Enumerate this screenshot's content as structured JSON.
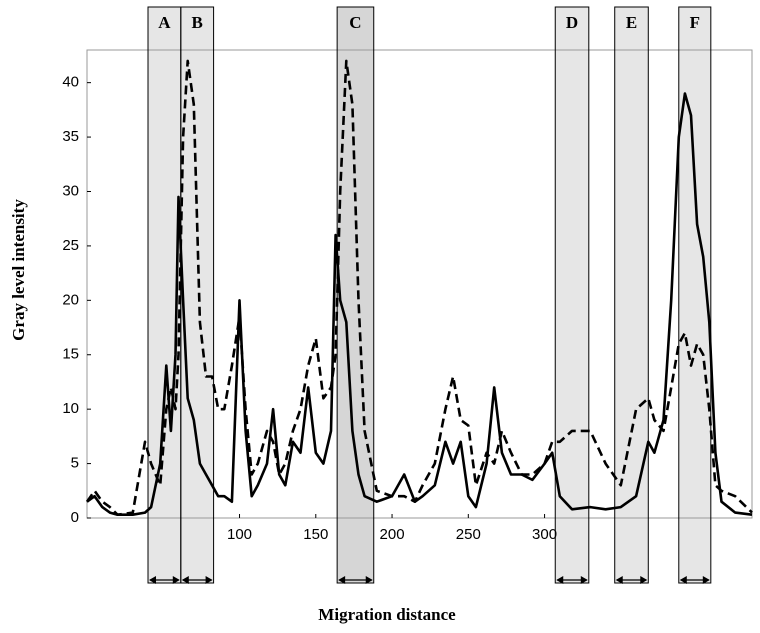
{
  "chart_data": {
    "type": "line",
    "y_label": "Gray level intensity",
    "x_label": "Migration distance",
    "xlim": [
      0,
      436
    ],
    "ylim": [
      0,
      43
    ],
    "xticks": [
      100,
      150,
      200,
      250,
      300
    ],
    "yticks": [
      0,
      5,
      10,
      15,
      20,
      25,
      30,
      35,
      40
    ],
    "x": [
      0,
      5,
      10,
      15,
      20,
      30,
      38,
      42,
      48,
      52,
      55,
      58,
      60,
      63,
      66,
      70,
      74,
      78,
      82,
      86,
      90,
      95,
      100,
      104,
      108,
      112,
      118,
      122,
      126,
      130,
      135,
      140,
      145,
      150,
      155,
      160,
      163,
      166,
      170,
      174,
      178,
      182,
      190,
      200,
      208,
      215,
      220,
      228,
      235,
      240,
      245,
      250,
      255,
      262,
      267,
      272,
      278,
      285,
      292,
      300,
      305,
      310,
      318,
      330,
      340,
      350,
      360,
      368,
      372,
      378,
      383,
      388,
      392,
      396,
      400,
      404,
      408,
      412,
      416,
      425,
      436
    ],
    "series": [
      {
        "color": "#000000",
        "dash": "solid",
        "values": [
          1.5,
          2,
          1,
          0.5,
          0.3,
          0.3,
          0.5,
          1,
          5,
          14,
          8,
          15,
          29.5,
          20,
          11,
          9,
          5,
          4,
          3,
          2,
          2,
          1.5,
          20,
          8,
          2,
          3,
          5,
          10,
          4,
          3,
          7,
          6,
          12,
          6,
          5,
          8,
          26,
          20,
          18,
          8,
          4,
          2,
          1.5,
          2,
          4,
          1.5,
          2,
          3,
          7,
          5,
          7,
          2,
          1,
          5,
          12,
          6,
          4,
          4,
          3.5,
          5,
          6,
          2,
          0.8,
          1,
          0.8,
          1,
          2,
          7,
          6,
          9,
          20,
          35,
          39,
          37,
          27,
          24,
          18,
          6,
          1.5,
          0.5,
          0.3
        ]
      },
      {
        "color": "#000000",
        "dash": "dashed",
        "values": [
          1.5,
          2.5,
          1.5,
          1,
          0.3,
          0.5,
          7,
          5,
          3,
          10,
          12,
          10,
          15,
          35,
          42,
          38,
          18,
          13,
          13,
          10,
          10,
          14,
          18.5,
          10,
          4,
          5,
          8,
          7,
          4,
          5,
          8,
          10,
          14,
          16.5,
          11,
          12,
          15,
          30,
          42,
          38,
          20,
          8,
          2.5,
          2,
          2,
          1.5,
          3,
          5,
          10,
          13,
          9,
          8.5,
          3,
          6,
          5,
          8,
          6,
          4,
          4,
          5,
          7,
          7,
          8,
          8,
          5,
          3,
          10,
          11,
          9,
          8,
          12,
          16,
          17,
          14,
          16,
          15,
          10,
          3,
          2.5,
          2,
          0.5
        ]
      }
    ],
    "bands": [
      {
        "label": "A",
        "from": 40,
        "to": 61.5,
        "color": "#e6e6e6"
      },
      {
        "label": "B",
        "from": 61.5,
        "to": 83,
        "color": "#e6e6e6"
      },
      {
        "label": "C",
        "from": 164,
        "to": 188,
        "color": "#d6d6d6"
      },
      {
        "label": "D",
        "from": 307,
        "to": 329,
        "color": "#e6e6e6"
      },
      {
        "label": "E",
        "from": 346,
        "to": 368,
        "color": "#e6e6e6"
      },
      {
        "label": "F",
        "from": 388,
        "to": 409,
        "color": "#e6e6e6"
      }
    ]
  }
}
